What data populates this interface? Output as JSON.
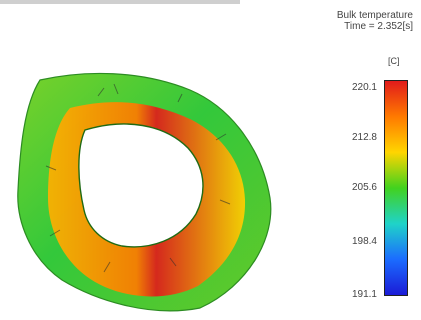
{
  "legend": {
    "title_line1": "Bulk temperature",
    "title_line2": "Time = 2.352[s]",
    "unit": "[C]",
    "ticks": [
      "220.1",
      "212.8",
      "205.6",
      "198.4",
      "191.1"
    ],
    "color_stops": [
      "#e11b1b",
      "#ff7a00",
      "#ffd500",
      "#42d21e",
      "#1fd3c8",
      "#1b6cff",
      "#1b1bd6"
    ]
  }
}
